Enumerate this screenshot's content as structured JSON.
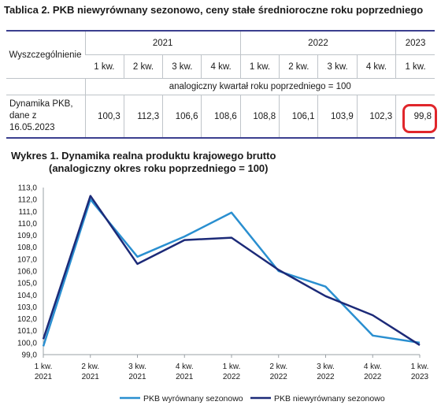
{
  "table": {
    "title": "Tablica 2. PKB niewyrównany sezonowo, ceny stałe średnioroczne roku poprzedniego",
    "row_header": "Wyszczególnienie",
    "years": [
      "2021",
      "2022",
      "2023"
    ],
    "quarters": [
      "1 kw.",
      "2 kw.",
      "3 kw.",
      "4 kw.",
      "1 kw.",
      "2 kw.",
      "3 kw.",
      "4 kw.",
      "1 kw."
    ],
    "note": "analogiczny kwartał roku poprzedniego = 100",
    "row_label_line1": "Dynamika PKB,",
    "row_label_line2": "dane z 16.05.2023",
    "values": [
      "100,3",
      "112,3",
      "106,6",
      "108,6",
      "108,8",
      "106,1",
      "103,9",
      "102,3",
      "99,8"
    ],
    "highlight_color": "#e0262b"
  },
  "chart_data": {
    "type": "line",
    "title": "Wykres 1. Dynamika realna produktu krajowego brutto",
    "subtitle": "(analogiczny okres roku poprzedniego = 100)",
    "xlabel": "",
    "ylabel": "",
    "categories": [
      [
        "1 kw.",
        "2021"
      ],
      [
        "2 kw.",
        "2021"
      ],
      [
        "3 kw.",
        "2021"
      ],
      [
        "4 kw.",
        "2021"
      ],
      [
        "1 kw.",
        "2022"
      ],
      [
        "2 kw.",
        "2022"
      ],
      [
        "3 kw.",
        "2022"
      ],
      [
        "4 kw.",
        "2022"
      ],
      [
        "1 kw.",
        "2023"
      ]
    ],
    "ylim": [
      99.0,
      113.0
    ],
    "yticks": [
      "99,0",
      "100,0",
      "101,0",
      "102,0",
      "103,0",
      "104,0",
      "105,0",
      "106,0",
      "107,0",
      "108,0",
      "109,0",
      "110,0",
      "111,0",
      "112,0",
      "113,0"
    ],
    "grid": false,
    "legend_position": "bottom",
    "series": [
      {
        "name": "PKB wyrównany sezonowo",
        "color": "#2a8fd0",
        "values": [
          99.7,
          112.0,
          107.2,
          108.9,
          110.9,
          106.0,
          104.7,
          100.6,
          100.0
        ]
      },
      {
        "name": "PKB niewyrównany sezonowo",
        "color": "#1c2a78",
        "values": [
          100.3,
          112.3,
          106.6,
          108.6,
          108.8,
          106.1,
          103.9,
          102.3,
          99.8
        ]
      }
    ]
  }
}
